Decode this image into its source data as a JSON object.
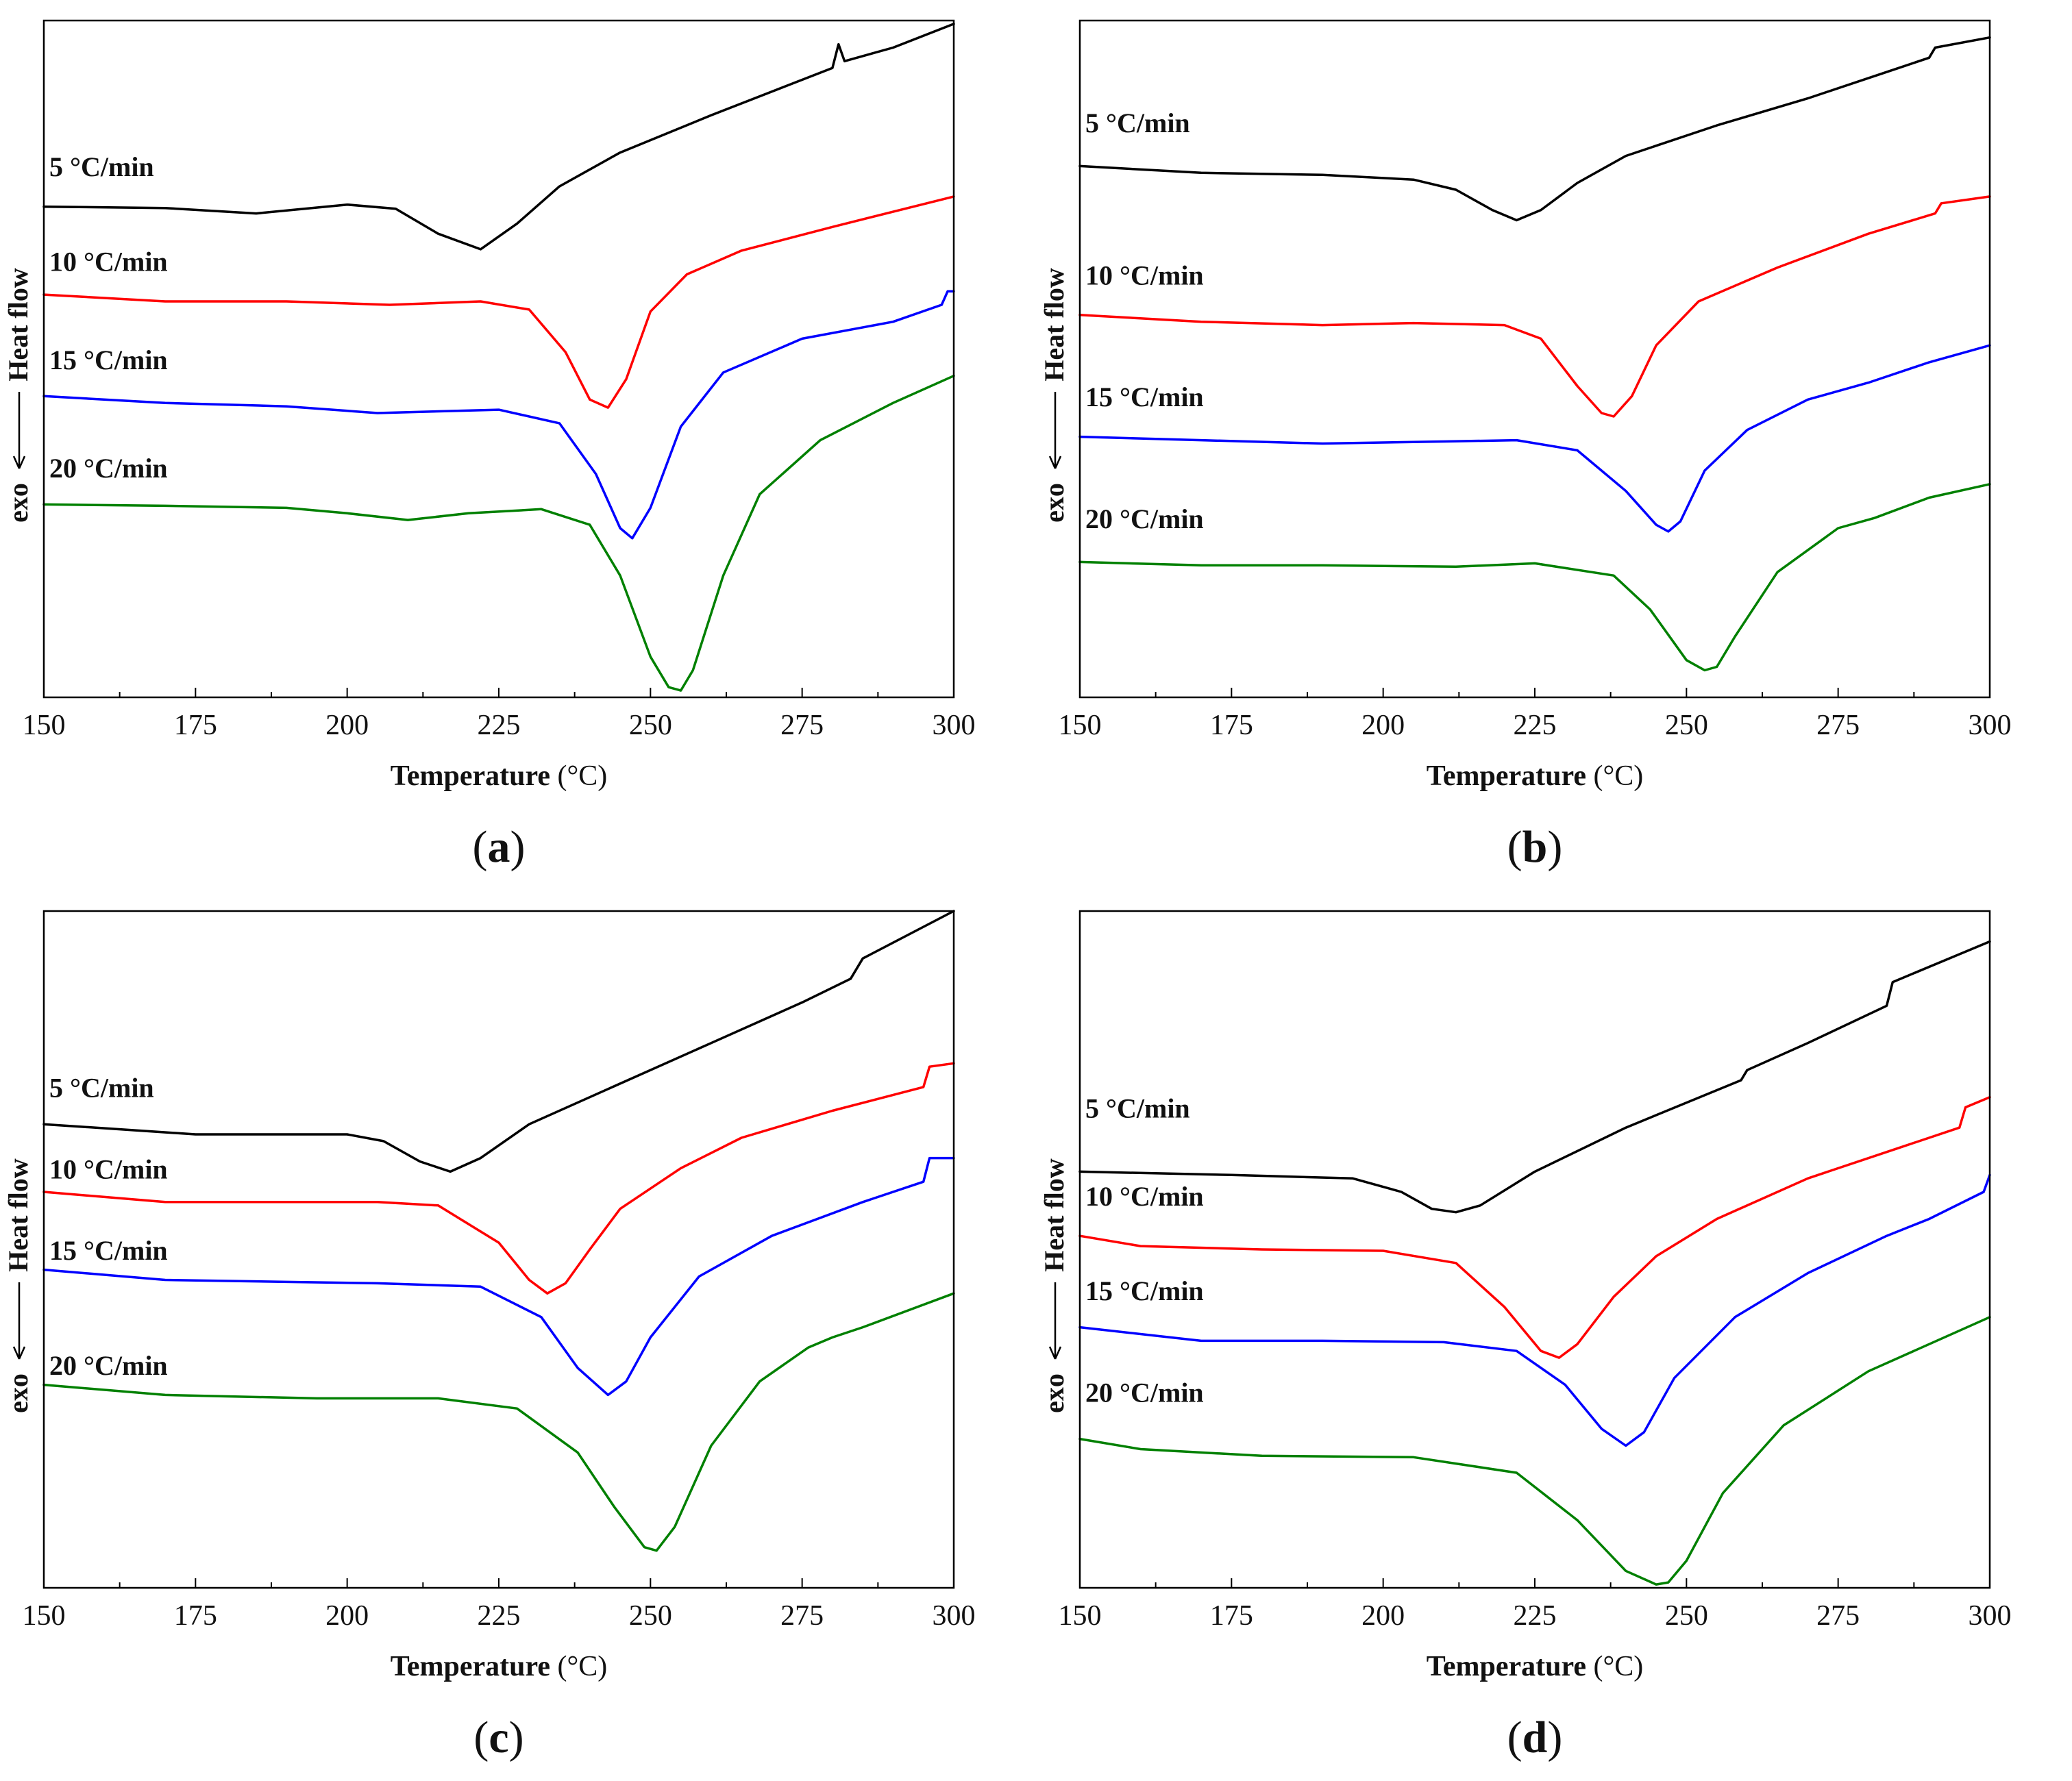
{
  "chart_data": [
    {
      "type": "line",
      "caption": "a",
      "xlabel": "Temperature",
      "xunit": "(°C)",
      "ylabel_main": "Heat  flow",
      "ylabel_exo": "exo",
      "xlim": [
        150,
        300
      ],
      "xticks": [
        150,
        175,
        200,
        225,
        250,
        275,
        300
      ],
      "ylim": [
        0,
        100
      ],
      "series": [
        {
          "name": "5 °C/min",
          "color": "#000000",
          "label_y": 77,
          "x": [
            150,
            170,
            185,
            200,
            208,
            215,
            222,
            228,
            235,
            245,
            260,
            270,
            280,
            281,
            282,
            290,
            300
          ],
          "y": [
            72.5,
            72.3,
            71.5,
            72.8,
            72.2,
            68.5,
            66.2,
            70.0,
            75.5,
            80.5,
            86.0,
            89.5,
            93.0,
            96.5,
            94.0,
            96.0,
            99.5
          ]
        },
        {
          "name": "10 °C/min",
          "color": "#ff0000",
          "label_y": 63,
          "x": [
            150,
            170,
            190,
            207,
            222,
            230,
            236,
            240,
            243,
            246,
            250,
            256,
            265,
            280,
            300
          ],
          "y": [
            59.5,
            58.5,
            58.5,
            58.0,
            58.5,
            57.3,
            51.0,
            44.0,
            42.8,
            47.0,
            57.0,
            62.5,
            66.0,
            69.5,
            74.0
          ]
        },
        {
          "name": "15 °C/min",
          "color": "#0000ff",
          "label_y": 48.5,
          "x": [
            150,
            170,
            190,
            205,
            225,
            235,
            241,
            245,
            247,
            250,
            255,
            262,
            275,
            290,
            298,
            299,
            300
          ],
          "y": [
            44.5,
            43.5,
            43.0,
            42.0,
            42.5,
            40.5,
            33.0,
            25.0,
            23.5,
            28.0,
            40.0,
            48.0,
            53.0,
            55.5,
            58.0,
            60.0,
            60.0
          ]
        },
        {
          "name": "20 °C/min",
          "color": "#008000",
          "label_y": 32.5,
          "x": [
            150,
            170,
            190,
            200,
            210,
            220,
            232,
            240,
            245,
            250,
            253,
            255,
            257,
            262,
            268,
            278,
            290,
            300
          ],
          "y": [
            28.5,
            28.3,
            28.0,
            27.2,
            26.2,
            27.2,
            27.8,
            25.5,
            18.0,
            6.0,
            1.5,
            1.0,
            4.0,
            18.0,
            30.0,
            38.0,
            43.5,
            47.5
          ]
        }
      ]
    },
    {
      "type": "line",
      "caption": "b",
      "xlabel": "Temperature",
      "xunit": "(°C)",
      "ylabel_main": "Heat  flow",
      "ylabel_exo": "exo",
      "xlim": [
        150,
        300
      ],
      "xticks": [
        150,
        175,
        200,
        225,
        250,
        275,
        300
      ],
      "ylim": [
        0,
        100
      ],
      "series": [
        {
          "name": "5 °C/min",
          "color": "#000000",
          "label_y": 83.5,
          "x": [
            150,
            170,
            190,
            205,
            212,
            218,
            222,
            226,
            232,
            240,
            255,
            270,
            285,
            290,
            291,
            300
          ],
          "y": [
            78.5,
            77.5,
            77.2,
            76.5,
            75.0,
            72.0,
            70.5,
            72.0,
            76.0,
            80.0,
            84.5,
            88.5,
            93.0,
            94.5,
            96.0,
            97.5
          ]
        },
        {
          "name": "10 °C/min",
          "color": "#ff0000",
          "label_y": 61,
          "x": [
            150,
            170,
            190,
            205,
            220,
            226,
            232,
            236,
            238,
            241,
            245,
            252,
            265,
            280,
            291,
            292,
            300
          ],
          "y": [
            56.5,
            55.5,
            55.0,
            55.3,
            55.0,
            53.0,
            46.0,
            42.0,
            41.5,
            44.5,
            52.0,
            58.5,
            63.5,
            68.5,
            71.5,
            73.0,
            74.0
          ]
        },
        {
          "name": "15 °C/min",
          "color": "#0000ff",
          "label_y": 43,
          "x": [
            150,
            170,
            190,
            210,
            222,
            232,
            240,
            245,
            247,
            249,
            253,
            260,
            270,
            280,
            290,
            300
          ],
          "y": [
            38.5,
            38.0,
            37.5,
            37.8,
            38.0,
            36.5,
            30.5,
            25.5,
            24.5,
            26.0,
            33.5,
            39.5,
            44.0,
            46.5,
            49.5,
            52.0
          ]
        },
        {
          "name": "20 °C/min",
          "color": "#008000",
          "label_y": 25,
          "x": [
            150,
            170,
            190,
            212,
            225,
            238,
            244,
            250,
            253,
            255,
            258,
            265,
            275,
            281,
            290,
            300
          ],
          "y": [
            20.0,
            19.5,
            19.5,
            19.3,
            19.8,
            18.0,
            13.0,
            5.5,
            4.0,
            4.5,
            9.0,
            18.5,
            25.0,
            26.5,
            29.5,
            31.5
          ]
        }
      ]
    },
    {
      "type": "line",
      "caption": "c",
      "xlabel": "Temperature",
      "xunit": "(°C)",
      "ylabel_main": "Heat  flow",
      "ylabel_exo": "exo",
      "xlim": [
        150,
        300
      ],
      "xticks": [
        150,
        175,
        200,
        225,
        250,
        275,
        300
      ],
      "ylim": [
        0,
        100
      ],
      "series": [
        {
          "name": "5 °C/min",
          "color": "#000000",
          "label_y": 72.5,
          "x": [
            150,
            175,
            200,
            206,
            212,
            217,
            222,
            230,
            245,
            260,
            275,
            283,
            285,
            300
          ],
          "y": [
            68.5,
            67.0,
            67.0,
            66.0,
            63.0,
            61.5,
            63.5,
            68.5,
            74.5,
            80.5,
            86.5,
            90.0,
            93.0,
            100.0
          ]
        },
        {
          "name": "10 °C/min",
          "color": "#ff0000",
          "label_y": 60.5,
          "x": [
            150,
            170,
            190,
            205,
            215,
            225,
            230,
            233,
            236,
            240,
            245,
            255,
            265,
            280,
            295,
            296,
            300
          ],
          "y": [
            58.5,
            57.0,
            57.0,
            57.0,
            56.5,
            51.0,
            45.5,
            43.5,
            45.0,
            50.0,
            56.0,
            62.0,
            66.5,
            70.5,
            74.0,
            77.0,
            77.5
          ]
        },
        {
          "name": "15 °C/min",
          "color": "#0000ff",
          "label_y": 48.5,
          "x": [
            150,
            170,
            190,
            205,
            222,
            232,
            238,
            243,
            246,
            250,
            258,
            270,
            285,
            295,
            296,
            300
          ],
          "y": [
            47.0,
            45.5,
            45.2,
            45.0,
            44.5,
            40.0,
            32.5,
            28.5,
            30.5,
            37.0,
            46.0,
            52.0,
            57.0,
            60.0,
            63.5,
            63.5
          ]
        },
        {
          "name": "20 °C/min",
          "color": "#008000",
          "label_y": 31.5,
          "x": [
            150,
            170,
            195,
            215,
            228,
            238,
            244,
            249,
            251,
            254,
            260,
            268,
            276,
            280,
            285,
            300
          ],
          "y": [
            30.0,
            28.5,
            28.0,
            28.0,
            26.5,
            20.0,
            12.0,
            6.0,
            5.5,
            9.0,
            21.0,
            30.5,
            35.5,
            37.0,
            38.5,
            43.5
          ]
        }
      ]
    },
    {
      "type": "line",
      "caption": "d",
      "xlabel": "Temperature",
      "xunit": "(°C)",
      "ylabel_main": "Heat  flow",
      "ylabel_exo": "exo",
      "xlim": [
        150,
        300
      ],
      "xticks": [
        150,
        175,
        200,
        225,
        250,
        275,
        300
      ],
      "ylim": [
        0,
        100
      ],
      "series": [
        {
          "name": "5 °C/min",
          "color": "#000000",
          "label_y": 69.5,
          "x": [
            150,
            175,
            195,
            203,
            208,
            212,
            216,
            225,
            240,
            259,
            260,
            270,
            283,
            284,
            300
          ],
          "y": [
            61.5,
            61.0,
            60.5,
            58.5,
            56.0,
            55.5,
            56.5,
            61.5,
            68.0,
            75.0,
            76.5,
            80.5,
            86.0,
            89.5,
            95.5
          ]
        },
        {
          "name": "10 °C/min",
          "color": "#ff0000",
          "label_y": 56.5,
          "x": [
            150,
            160,
            180,
            200,
            212,
            220,
            226,
            229,
            232,
            238,
            245,
            255,
            270,
            285,
            295,
            296,
            300
          ],
          "y": [
            52.0,
            50.5,
            50.0,
            49.8,
            48.0,
            41.5,
            35.0,
            34.0,
            36.0,
            43.0,
            49.0,
            54.5,
            60.5,
            65.0,
            68.0,
            71.0,
            72.5
          ]
        },
        {
          "name": "15 °C/min",
          "color": "#0000ff",
          "label_y": 42.5,
          "x": [
            150,
            170,
            190,
            210,
            222,
            230,
            236,
            240,
            243,
            248,
            258,
            270,
            283,
            290,
            299,
            300
          ],
          "y": [
            38.5,
            36.5,
            36.5,
            36.3,
            35.0,
            30.0,
            23.5,
            21.0,
            23.0,
            31.0,
            40.0,
            46.5,
            52.0,
            54.5,
            58.5,
            61.0
          ]
        },
        {
          "name": "20 °C/min",
          "color": "#008000",
          "label_y": 27.5,
          "x": [
            150,
            160,
            180,
            205,
            222,
            232,
            240,
            245,
            247,
            250,
            256,
            266,
            280,
            300
          ],
          "y": [
            22.0,
            20.5,
            19.5,
            19.3,
            17.0,
            10.0,
            2.5,
            0.5,
            0.8,
            4.0,
            14.0,
            24.0,
            32.0,
            40.0
          ]
        }
      ]
    }
  ]
}
